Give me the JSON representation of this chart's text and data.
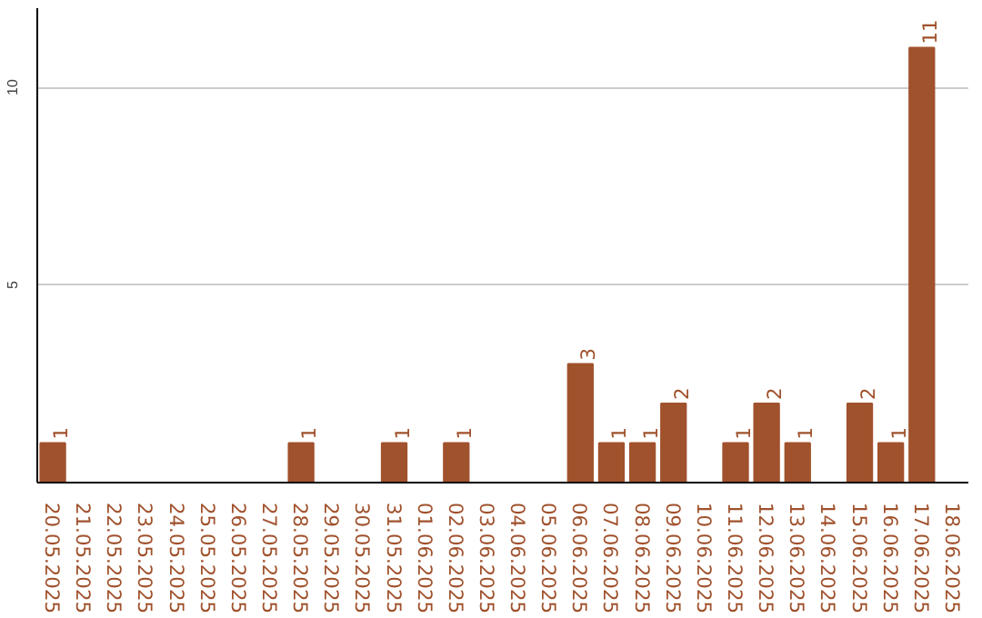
{
  "chart_data": {
    "type": "bar",
    "categories": [
      "20.05.2025",
      "21.05.2025",
      "22.05.2025",
      "23.05.2025",
      "24.05.2025",
      "25.05.2025",
      "26.05.2025",
      "27.05.2025",
      "28.05.2025",
      "29.05.2025",
      "30.05.2025",
      "31.05.2025",
      "01.06.2025",
      "02.06.2025",
      "03.06.2025",
      "04.06.2025",
      "05.06.2025",
      "06.06.2025",
      "07.06.2025",
      "08.06.2025",
      "09.06.2025",
      "10.06.2025",
      "11.06.2025",
      "12.06.2025",
      "13.06.2025",
      "14.06.2025",
      "15.06.2025",
      "16.06.2025",
      "17.06.2025",
      "18.06.2025"
    ],
    "values": [
      1,
      0,
      0,
      0,
      0,
      0,
      0,
      0,
      1,
      0,
      0,
      1,
      0,
      1,
      0,
      0,
      0,
      3,
      1,
      1,
      2,
      0,
      1,
      2,
      1,
      0,
      2,
      1,
      11,
      0
    ],
    "value_labels": [
      "1",
      null,
      null,
      null,
      null,
      null,
      null,
      null,
      "1",
      null,
      null,
      "1",
      null,
      "1",
      null,
      null,
      null,
      "3",
      "1",
      "1",
      "2",
      null,
      "1",
      "2",
      "1",
      null,
      "2",
      "1",
      "11",
      null
    ],
    "color": "#a0522d",
    "ylim": [
      0,
      12
    ],
    "yticks": [
      5,
      10
    ],
    "grid": "y"
  }
}
